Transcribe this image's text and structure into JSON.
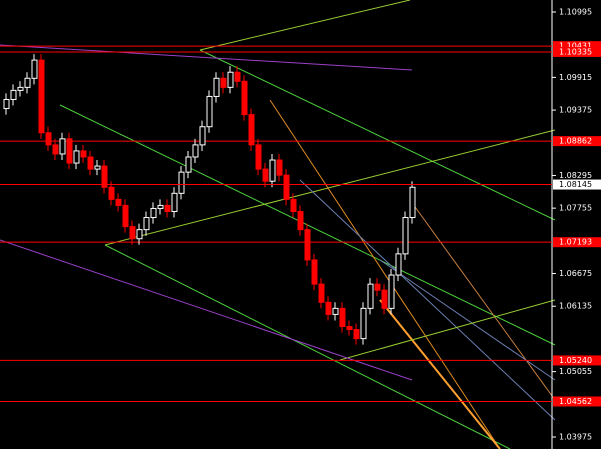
{
  "chart_data": {
    "type": "candlestick",
    "open": [
      1.094,
      1.0955,
      1.097,
      1.0975,
      1.099,
      1.102,
      1.09,
      1.088,
      1.0865,
      1.089,
      1.085,
      1.087,
      1.086,
      1.084,
      1.0845,
      1.081,
      1.079,
      1.078,
      1.0745,
      1.0725,
      1.074,
      1.076,
      1.0775,
      1.078,
      1.077,
      1.08,
      1.0835,
      1.086,
      1.088,
      1.091,
      1.096,
      1.099,
      1.0975,
      1.1,
      1.0985,
      1.093,
      1.088,
      1.084,
      1.082,
      1.0855,
      1.083,
      1.079,
      1.077,
      1.074,
      1.069,
      1.065,
      1.062,
      1.06,
      1.061,
      1.058,
      1.0575,
      1.056,
      1.061,
      1.065,
      1.064,
      1.061,
      1.0665,
      1.07,
      1.076
    ],
    "high": [
      1.0965,
      1.098,
      1.0985,
      1.1,
      1.103,
      1.103,
      1.091,
      1.089,
      1.09,
      1.09,
      1.088,
      1.088,
      1.087,
      1.0855,
      1.0855,
      1.082,
      1.08,
      1.079,
      1.0755,
      1.075,
      1.077,
      1.0785,
      1.079,
      1.079,
      1.081,
      1.0845,
      1.087,
      1.089,
      1.092,
      1.097,
      1.1,
      1.1,
      1.101,
      1.101,
      1.0995,
      1.094,
      1.089,
      1.085,
      1.0865,
      1.0865,
      1.084,
      1.08,
      1.078,
      1.075,
      1.07,
      1.066,
      1.063,
      1.062,
      1.062,
      1.059,
      1.0585,
      1.062,
      1.066,
      1.066,
      1.065,
      1.0675,
      1.071,
      1.077,
      1.082
    ],
    "low": [
      1.093,
      1.0945,
      1.096,
      1.0965,
      1.098,
      1.089,
      1.087,
      1.0855,
      1.0855,
      1.084,
      1.084,
      1.085,
      1.083,
      1.083,
      1.08,
      1.078,
      1.077,
      1.0735,
      1.0715,
      1.0715,
      1.073,
      1.075,
      1.0765,
      1.076,
      1.076,
      1.079,
      1.0825,
      1.085,
      1.087,
      1.09,
      1.095,
      1.0965,
      1.0965,
      1.0975,
      1.092,
      1.087,
      1.083,
      1.081,
      1.081,
      1.082,
      1.078,
      1.076,
      1.073,
      1.068,
      1.064,
      1.061,
      1.059,
      1.059,
      1.057,
      1.0565,
      1.055,
      1.055,
      1.06,
      1.063,
      1.06,
      1.06,
      1.0655,
      1.069,
      1.075
    ],
    "close": [
      1.0955,
      1.097,
      1.0975,
      1.099,
      1.102,
      1.09,
      1.088,
      1.0865,
      1.089,
      1.085,
      1.087,
      1.086,
      1.084,
      1.0845,
      1.081,
      1.079,
      1.078,
      1.0745,
      1.0725,
      1.074,
      1.076,
      1.0775,
      1.078,
      1.077,
      1.08,
      1.0835,
      1.086,
      1.088,
      1.091,
      1.096,
      1.099,
      1.0975,
      1.1,
      1.0985,
      1.093,
      1.088,
      1.084,
      1.082,
      1.0855,
      1.083,
      1.079,
      1.077,
      1.074,
      1.069,
      1.065,
      1.062,
      1.06,
      1.061,
      1.058,
      1.0575,
      1.056,
      1.061,
      1.065,
      1.064,
      1.061,
      1.0665,
      1.07,
      1.076,
      1.081
    ],
    "up_color": "#ffffff",
    "down_color": "#ff0000",
    "ylim": [
      1.03777,
      1.11193
    ],
    "yticks": [
      1.10995,
      1.09915,
      1.09375,
      1.08295,
      1.07755,
      1.06675,
      1.06135,
      1.05055,
      1.03975
    ],
    "levels": [
      1.10431,
      1.10335,
      1.08862,
      1.07193,
      {
        "value": 1.0524,
        "label": "1.05240"
      },
      1.04562
    ],
    "level_color": "#ff0000",
    "bid": 1.08145
  }
}
